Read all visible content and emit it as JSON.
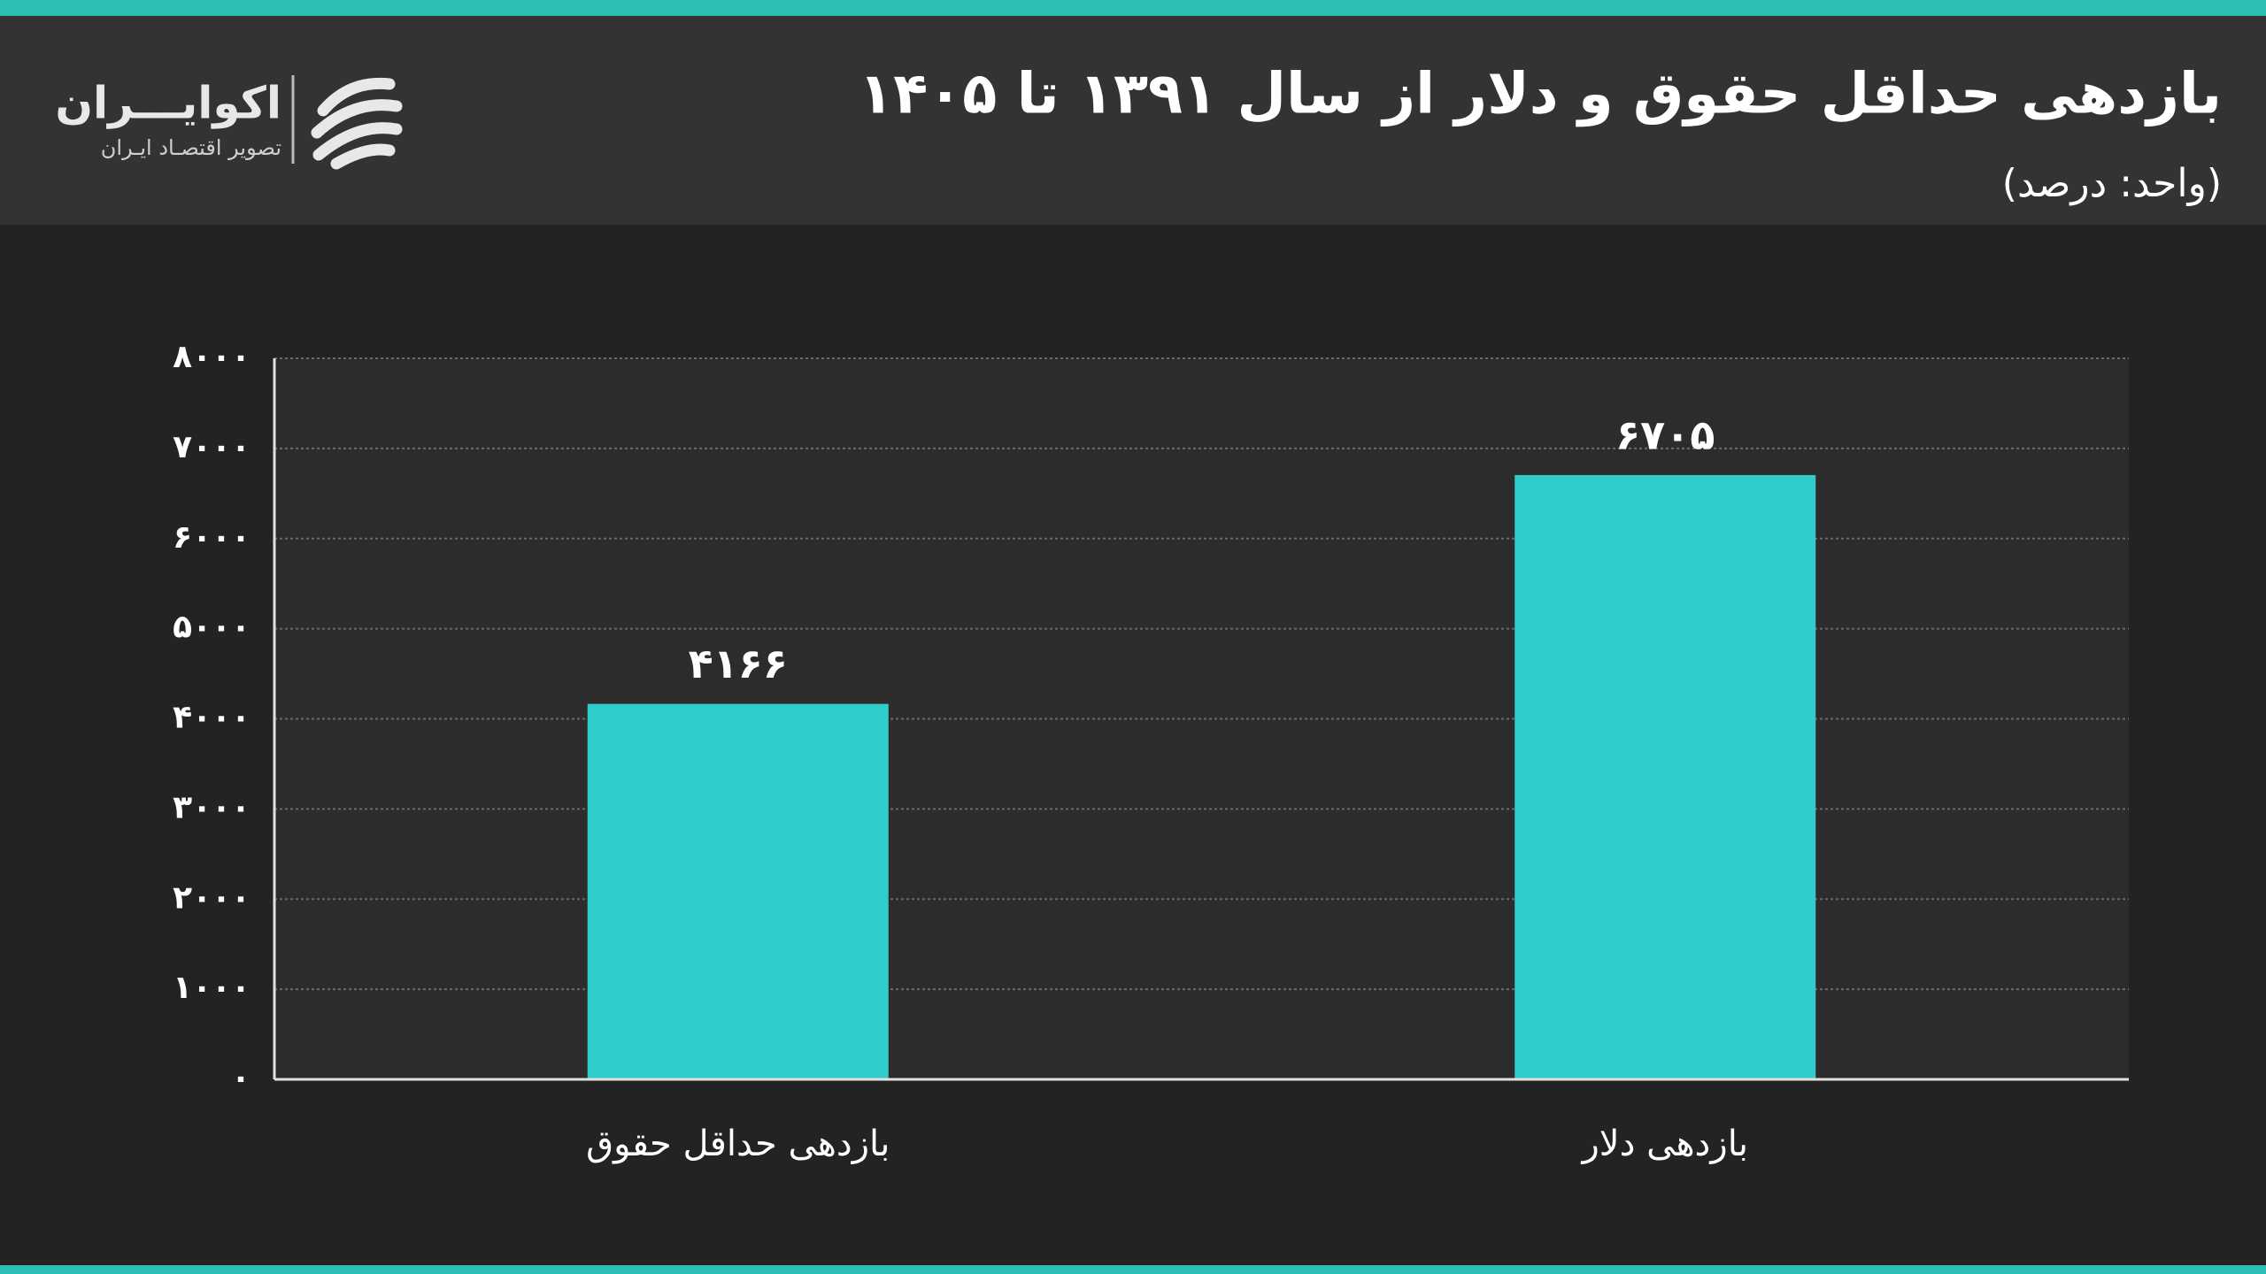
{
  "brand": {
    "name": "اکوایـــران",
    "tagline": "تصویر اقتصـاد ایـران"
  },
  "chart_data": {
    "type": "bar",
    "title": "بازدهی حداقل حقوق و دلار از سال ۱۳۹۱ تا ۱۴۰۵",
    "subtitle": "(واحد: درصد)",
    "categories": [
      "بازدهی حداقل حقوق",
      "بازدهی دلار"
    ],
    "values": [
      4166,
      6705
    ],
    "value_labels": [
      "۴۱۶۶",
      "۶۷۰۵"
    ],
    "color": "#31cdcd",
    "ylim": [
      0,
      8000
    ],
    "yticks": [
      {
        "value": 0,
        "label": "۰"
      },
      {
        "value": 1000,
        "label": "۱۰۰۰"
      },
      {
        "value": 2000,
        "label": "۲۰۰۰"
      },
      {
        "value": 3000,
        "label": "۳۰۰۰"
      },
      {
        "value": 4000,
        "label": "۴۰۰۰"
      },
      {
        "value": 5000,
        "label": "۵۰۰۰"
      },
      {
        "value": 6000,
        "label": "۶۰۰۰"
      },
      {
        "value": 7000,
        "label": "۷۰۰۰"
      },
      {
        "value": 8000,
        "label": "۸۰۰۰"
      }
    ],
    "grid": true
  }
}
